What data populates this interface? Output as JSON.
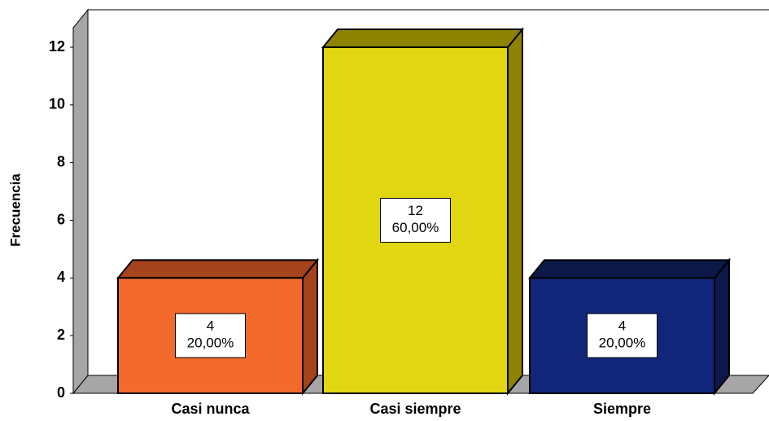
{
  "chart_data": {
    "type": "bar3d",
    "y_label": "Frecuencia",
    "categories": [
      "Casi nunca",
      "Casi siempre",
      "Siempre"
    ],
    "values": [
      4,
      12,
      4
    ],
    "percent_labels": [
      "20,00%",
      "60,00%",
      "20,00%"
    ],
    "colors": [
      "#f26a2c",
      "#e2d511",
      "#11267a"
    ],
    "side_colors": [
      "#a5431c",
      "#8e8300",
      "#0b1848"
    ],
    "ylim": [
      0,
      12
    ],
    "yticks": [
      0,
      2,
      4,
      6,
      8,
      10,
      12
    ]
  }
}
